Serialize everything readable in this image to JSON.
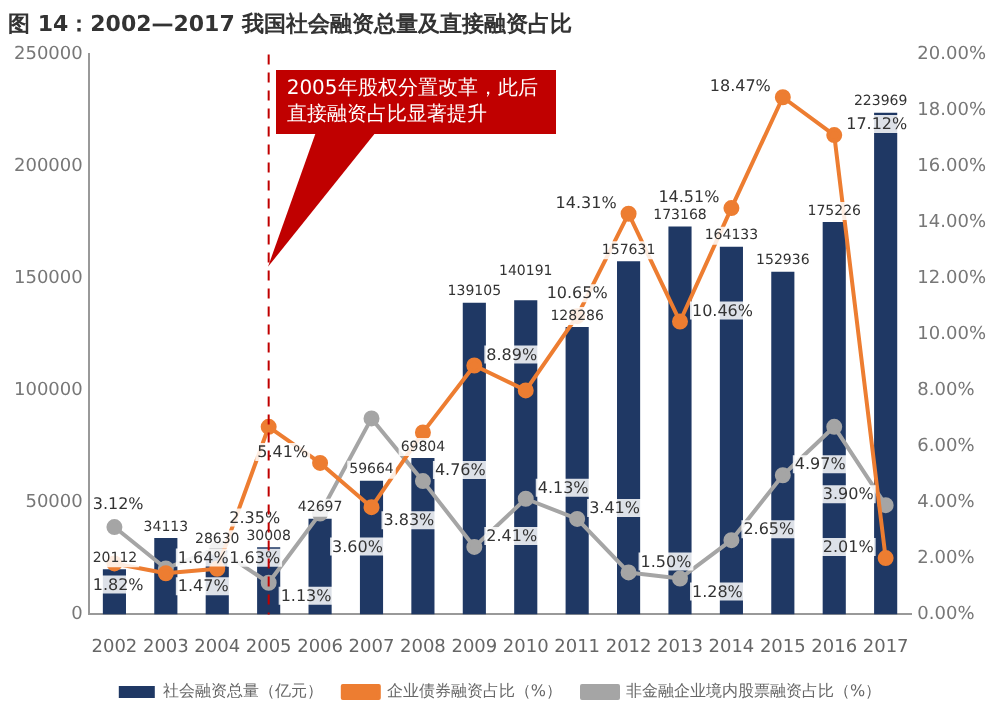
{
  "chart_data": {
    "type": "bar",
    "title": "图 14：2002—2017 我国社会融资总量及直接融资占比",
    "categories": [
      "2002",
      "2003",
      "2004",
      "2005",
      "2006",
      "2007",
      "2008",
      "2009",
      "2010",
      "2011",
      "2012",
      "2013",
      "2014",
      "2015",
      "2016",
      "2017"
    ],
    "series": [
      {
        "name": "社会融资总量（亿元）",
        "color": "#1f3864",
        "values": [
          20112,
          34113,
          28630,
          30008,
          42697,
          59664,
          69804,
          139105,
          140191,
          128286,
          157631,
          173168,
          164133,
          152936,
          175226,
          223969
        ],
        "value_labels": [
          "20112",
          "34113",
          "28630",
          "30008",
          "42697",
          "59664",
          "69804",
          "139105",
          "140191",
          "128286",
          "157631",
          "173168",
          "164133",
          "152936",
          "175226",
          "223969"
        ]
      },
      {
        "name": "企业债券融资占比（%）",
        "type": "line",
        "axis": "y2",
        "color": "#ed7d31",
        "values": [
          1.82,
          1.47,
          1.63,
          6.7,
          5.41,
          3.83,
          6.5,
          8.89,
          8.0,
          10.65,
          14.31,
          10.46,
          14.51,
          18.47,
          17.12,
          2.01
        ],
        "value_labels": [
          "1.82%",
          "1.47%",
          "1.63%",
          null,
          "5.41%",
          "3.83%",
          null,
          "8.89%",
          null,
          "10.65%",
          "14.31%",
          "10.46%",
          "14.51%",
          "18.47%",
          "17.12%",
          "2.01%"
        ]
      },
      {
        "name": "非金融企业境内股票融资占比（%）",
        "type": "line",
        "axis": "y2",
        "color": "#a5a5a5",
        "values": [
          3.12,
          1.64,
          2.35,
          1.13,
          3.6,
          7.0,
          4.76,
          2.41,
          4.13,
          3.41,
          1.5,
          1.28,
          2.65,
          4.97,
          6.7,
          3.9
        ],
        "value_labels": [
          "3.12%",
          "1.64%",
          "2.35%",
          "1.13%",
          "3.60%",
          null,
          "4.76%",
          "2.41%",
          "4.13%",
          "3.41%",
          "1.50%",
          "1.28%",
          "2.65%",
          "4.97%",
          null,
          "3.90%"
        ]
      }
    ],
    "ylim": [
      0,
      250000
    ],
    "yticks": [
      0,
      50000,
      100000,
      150000,
      200000,
      250000
    ],
    "y2lim": [
      0,
      20
    ],
    "y2ticks": [
      {
        "value": 0,
        "label": "0.00%"
      },
      {
        "value": 2,
        "label": "2.00%"
      },
      {
        "value": 4,
        "label": "4.00%"
      },
      {
        "value": 6,
        "label": "6.00%"
      },
      {
        "value": 8,
        "label": "8.00%"
      },
      {
        "value": 10,
        "label": "10.00%"
      },
      {
        "value": 12,
        "label": "12.00%"
      },
      {
        "value": 14,
        "label": "14.00%"
      },
      {
        "value": 16,
        "label": "16.00%"
      },
      {
        "value": 18,
        "label": "18.00%"
      },
      {
        "value": 20,
        "label": "20.00%"
      }
    ],
    "ref_lines": [
      {
        "axis": "x",
        "value": "2005",
        "label": "2005年股权分置改革，此后直接融资占比显著提升",
        "color": "#c00000",
        "line_style": "dashed"
      }
    ],
    "marker": "circle",
    "legend": "bottom",
    "grid": false
  }
}
